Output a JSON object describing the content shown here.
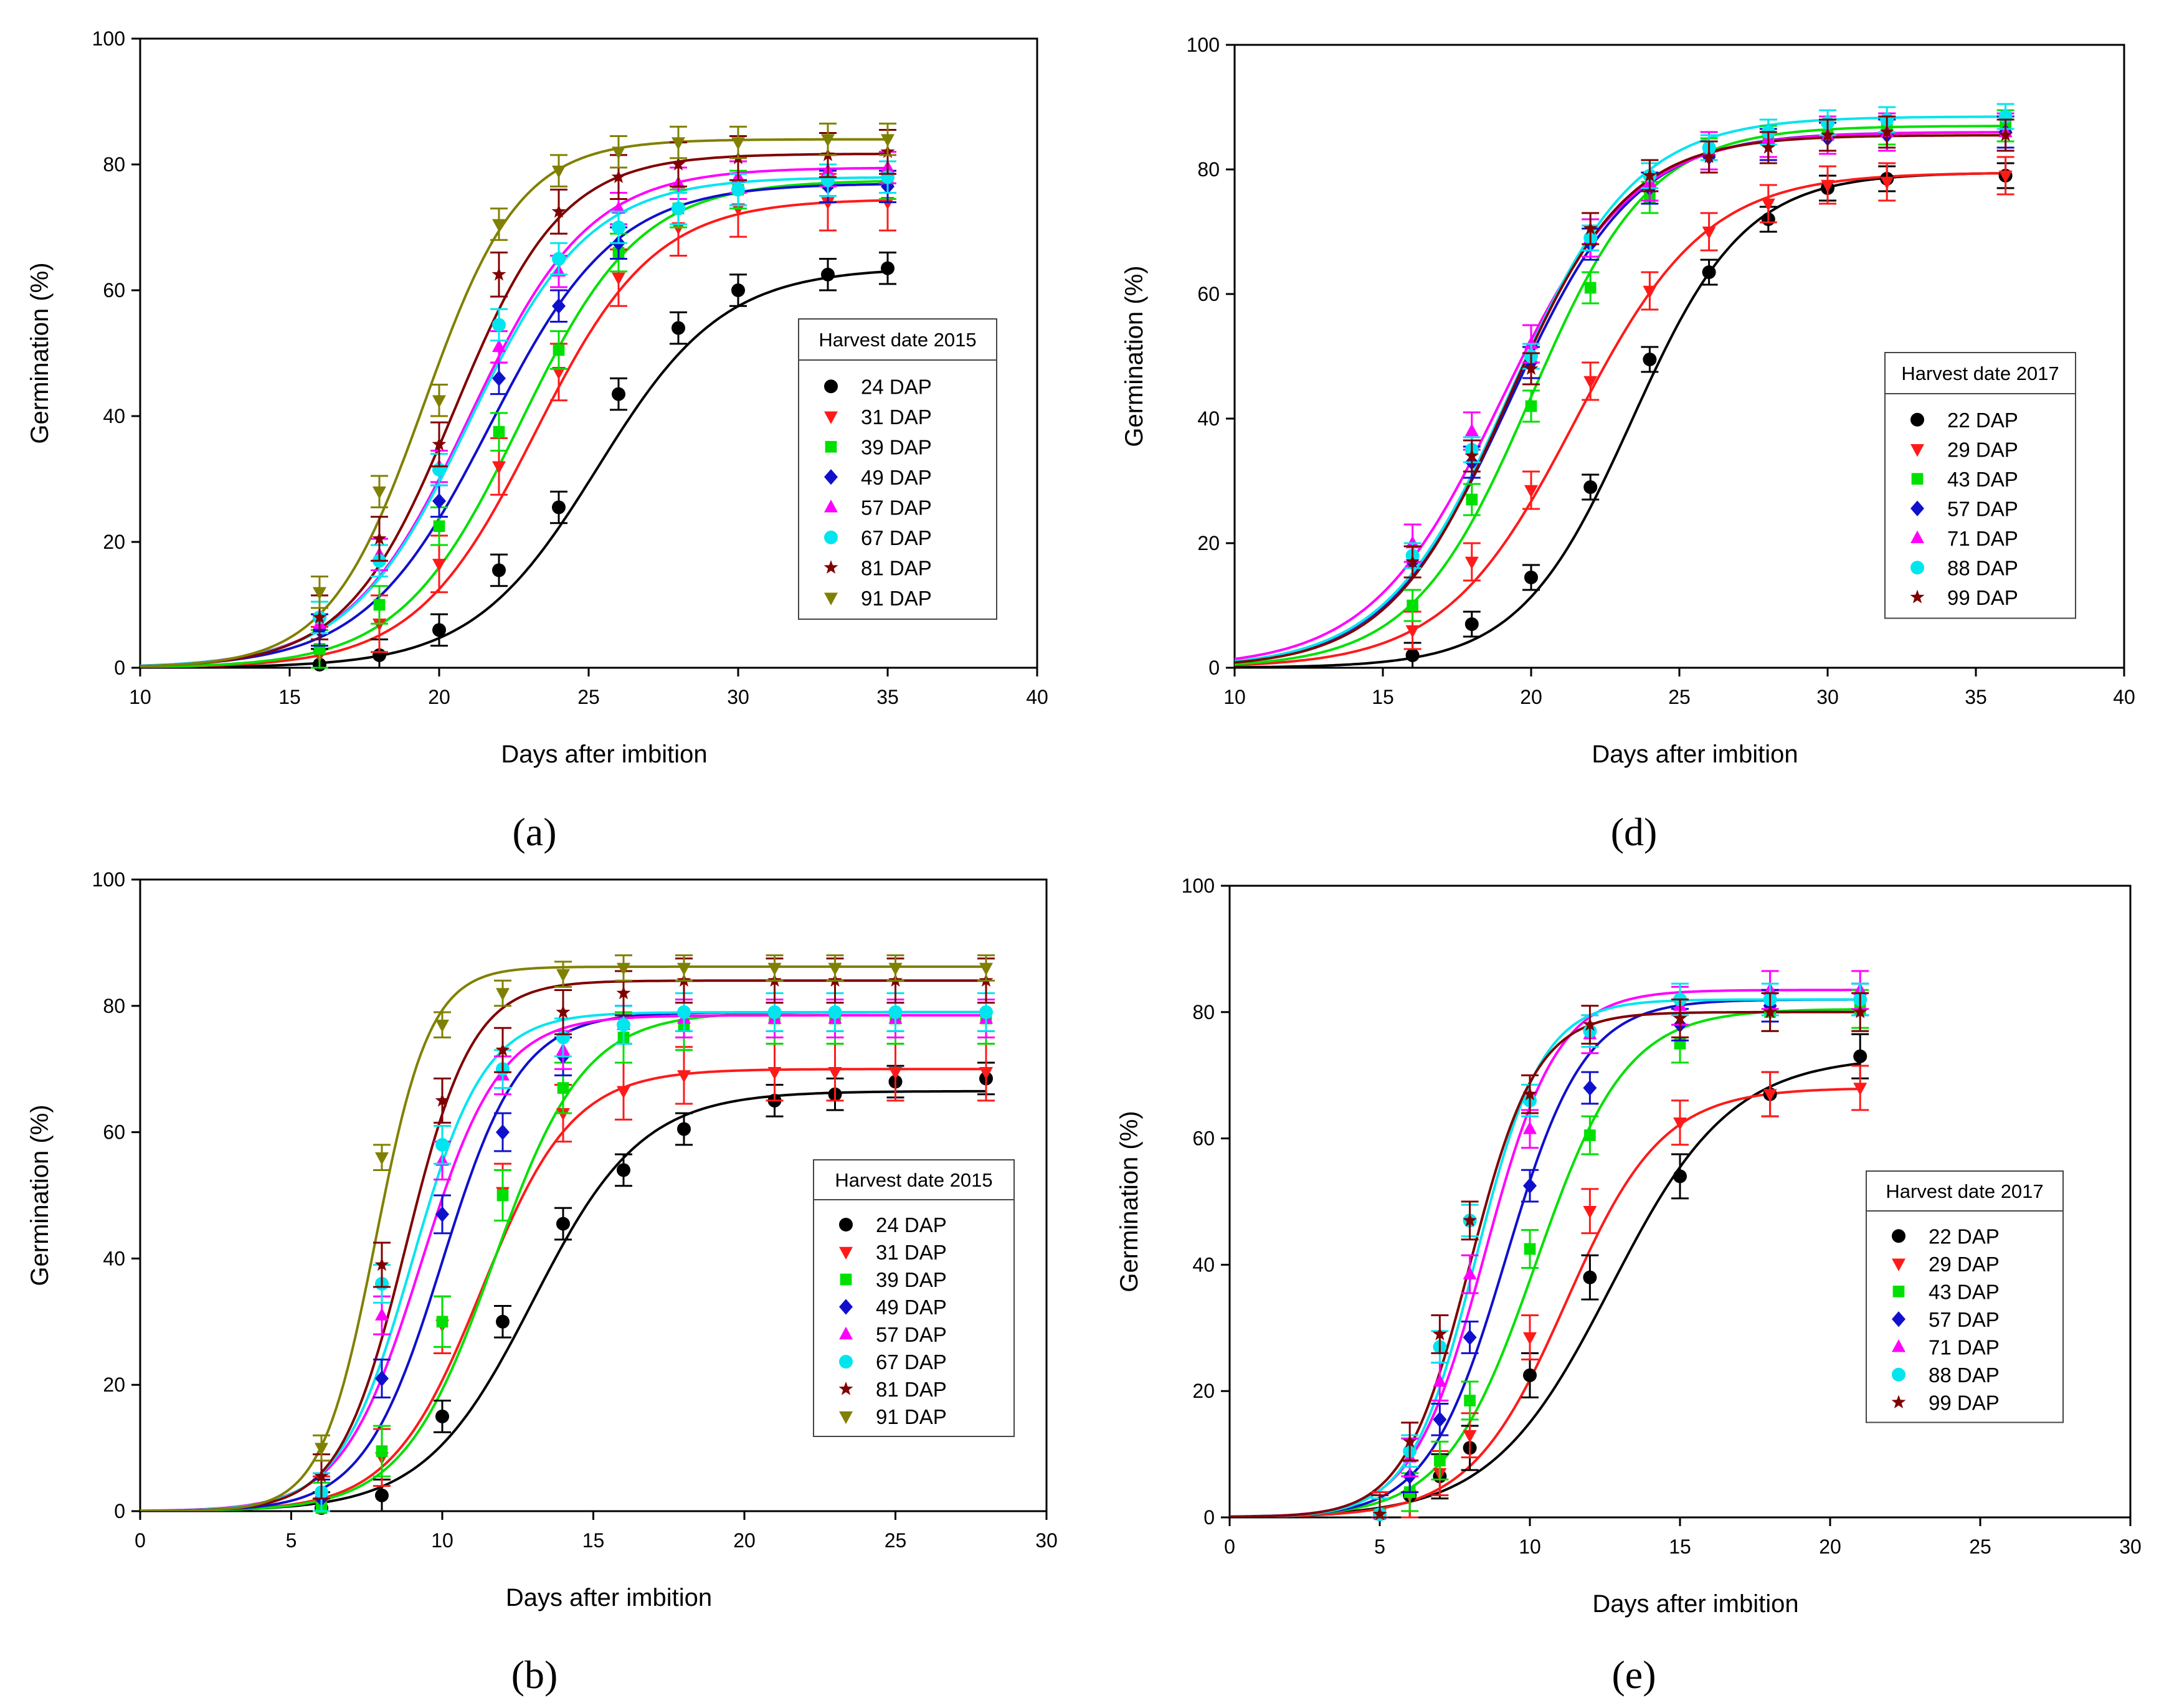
{
  "figure": {
    "panels": [
      {
        "id": "a",
        "label": "(a)"
      },
      {
        "id": "d",
        "label": "(d)"
      },
      {
        "id": "b",
        "label": "(b)"
      },
      {
        "id": "e",
        "label": "(e)"
      }
    ]
  },
  "colors": {
    "black": "#000000",
    "red": "#ff1a1a",
    "green": "#00e000",
    "blue": "#1010cc",
    "magenta": "#ff00ff",
    "cyan": "#00e5ee",
    "darkred": "#800000",
    "olive": "#808000"
  },
  "chart_data": [
    {
      "id": "a",
      "type": "line",
      "title": "",
      "xlabel": "Days after imbition",
      "ylabel": "Germination (%)",
      "xlim": [
        10,
        40
      ],
      "ylim": [
        0,
        100
      ],
      "xticks": [
        10,
        15,
        20,
        25,
        30,
        35,
        40
      ],
      "yticks": [
        0,
        20,
        40,
        60,
        80,
        100
      ],
      "legend_title": "Harvest date 2015",
      "legend_position": "center-right",
      "x": [
        16,
        18,
        20,
        22,
        24,
        26,
        28,
        30,
        33,
        35
      ],
      "series": [
        {
          "name": "24 DAP",
          "marker": "circle",
          "color": "#000000",
          "values": [
            0.5,
            2,
            6,
            15.5,
            25.5,
            43.5,
            54,
            60,
            62.5,
            63.5
          ],
          "err": 2.5,
          "fit": {
            "a": 63.6,
            "x0": 25.3,
            "b": 2.1
          }
        },
        {
          "name": "31 DAP",
          "marker": "triangle-down",
          "color": "#ff1a1a",
          "values": [
            2,
            7,
            16.5,
            32,
            47,
            62,
            70,
            73,
            74,
            74
          ],
          "err": 4.5,
          "fit": {
            "a": 74.5,
            "x0": 23.2,
            "b": 2.0
          }
        },
        {
          "name": "39 DAP",
          "marker": "square",
          "color": "#00e000",
          "values": [
            3,
            10,
            22.5,
            37.5,
            50.5,
            66,
            73,
            76,
            77,
            77.5
          ],
          "err": 3,
          "fit": {
            "a": 77.5,
            "x0": 22.7,
            "b": 2.0
          }
        },
        {
          "name": "49 DAP",
          "marker": "diamond",
          "color": "#1010cc",
          "values": [
            6,
            17,
            26.5,
            46,
            57.5,
            67.5,
            73,
            76,
            76.5,
            76.5
          ],
          "err": 2.5,
          "fit": {
            "a": 77.0,
            "x0": 21.7,
            "b": 2.1
          }
        },
        {
          "name": "57 DAP",
          "marker": "triangle-up",
          "color": "#ff00ff",
          "values": [
            7,
            18,
            32,
            51,
            63,
            73,
            77,
            78,
            79,
            79.5
          ],
          "err": 2.5,
          "fit": {
            "a": 79.5,
            "x0": 21.0,
            "b": 2.0
          }
        },
        {
          "name": "67 DAP",
          "marker": "circle",
          "color": "#00e5ee",
          "values": [
            8,
            17,
            31.5,
            54.5,
            65,
            70,
            73,
            76,
            77.5,
            78
          ],
          "err": 2.5,
          "fit": {
            "a": 78.0,
            "x0": 21.0,
            "b": 2.0
          }
        },
        {
          "name": "81 DAP",
          "marker": "star",
          "color": "#800000",
          "values": [
            8,
            20.5,
            35.5,
            62.5,
            72.5,
            78,
            80,
            81,
            81.5,
            82
          ],
          "err": 3.5,
          "fit": {
            "a": 81.7,
            "x0": 20.5,
            "b": 1.8
          }
        },
        {
          "name": "91 DAP",
          "marker": "triangle-down",
          "color": "#808000",
          "values": [
            12,
            28,
            42.5,
            70.5,
            79,
            82,
            83.5,
            83.5,
            84,
            84
          ],
          "err": 2.5,
          "fit": {
            "a": 84.0,
            "x0": 19.5,
            "b": 1.6
          }
        }
      ]
    },
    {
      "id": "d",
      "type": "line",
      "title": "",
      "xlabel": "Days after imbition",
      "ylabel": "Germination (%)",
      "xlim": [
        10,
        40
      ],
      "ylim": [
        0,
        100
      ],
      "xticks": [
        10,
        15,
        20,
        25,
        30,
        35,
        40
      ],
      "yticks": [
        0,
        20,
        40,
        60,
        80,
        100
      ],
      "legend_title": "Harvest date 2017",
      "legend_position": "center-right",
      "x": [
        16,
        18,
        20,
        22,
        24,
        26,
        28,
        30,
        32,
        36
      ],
      "series": [
        {
          "name": "22 DAP",
          "marker": "circle",
          "color": "#000000",
          "values": [
            2,
            7,
            14.5,
            29,
            49.5,
            63.5,
            72,
            77,
            78.5,
            79
          ],
          "err": 2,
          "fit": {
            "a": 79.5,
            "x0": 23.4,
            "b": 1.9
          }
        },
        {
          "name": "29 DAP",
          "marker": "triangle-down",
          "color": "#ff1a1a",
          "values": [
            6,
            17,
            28.5,
            46,
            60.5,
            70,
            74.5,
            77.5,
            78,
            79
          ],
          "err": 3,
          "fit": {
            "a": 79.5,
            "x0": 21.5,
            "b": 2.2
          }
        },
        {
          "name": "43 DAP",
          "marker": "square",
          "color": "#00e000",
          "values": [
            10,
            27,
            42,
            61,
            75.5,
            82.5,
            84.5,
            85.5,
            86.5,
            87
          ],
          "err": 2.5,
          "fit": {
            "a": 87.0,
            "x0": 20.0,
            "b": 2.0
          }
        },
        {
          "name": "57 DAP",
          "marker": "diamond",
          "color": "#1010cc",
          "values": [
            17,
            33,
            49,
            68,
            77,
            82,
            84,
            85,
            85.5,
            86
          ],
          "err": 2.5,
          "fit": {
            "a": 86.0,
            "x0": 19.3,
            "b": 2.1
          }
        },
        {
          "name": "71 DAP",
          "marker": "triangle-up",
          "color": "#ff00ff",
          "values": [
            20,
            38,
            52,
            69,
            78,
            83,
            85,
            85.5,
            86,
            86
          ],
          "err": 3,
          "fit": {
            "a": 86.0,
            "x0": 19.0,
            "b": 2.2
          }
        },
        {
          "name": "88 DAP",
          "marker": "circle",
          "color": "#00e5ee",
          "values": [
            18,
            35,
            50,
            69,
            79,
            83.5,
            86,
            87.5,
            88,
            88.5
          ],
          "err": 2,
          "fit": {
            "a": 88.5,
            "x0": 19.3,
            "b": 2.1
          }
        },
        {
          "name": "99 DAP",
          "marker": "star",
          "color": "#800000",
          "values": [
            17,
            34,
            48,
            70.5,
            79,
            82,
            83.5,
            85.5,
            86,
            85.5
          ],
          "err": 2.5,
          "fit": {
            "a": 85.5,
            "x0": 19.2,
            "b": 2.0
          }
        }
      ]
    },
    {
      "id": "b",
      "type": "line",
      "title": "",
      "xlabel": "Days after imbition",
      "ylabel": "Germination (%)",
      "xlim": [
        0,
        30
      ],
      "ylim": [
        0,
        100
      ],
      "xticks": [
        0,
        5,
        10,
        15,
        20,
        25,
        30
      ],
      "yticks": [
        0,
        20,
        40,
        60,
        80,
        100
      ],
      "legend_title": "Harvest date 2015",
      "legend_position": "center-right",
      "x": [
        6,
        8,
        10,
        12,
        14,
        16,
        18,
        21,
        23,
        25,
        28
      ],
      "series": [
        {
          "name": "24 DAP",
          "marker": "circle",
          "color": "#000000",
          "values": [
            0.5,
            2.5,
            15,
            30,
            45.5,
            54,
            60.5,
            65,
            66,
            68,
            68.5
          ],
          "err": 2.5,
          "fit": {
            "a": 66.5,
            "x0": 13.0,
            "b": 1.8
          }
        },
        {
          "name": "31 DAP",
          "marker": "triangle-down",
          "color": "#ff1a1a",
          "values": [
            1,
            8.5,
            29.5,
            50.5,
            63,
            66.5,
            69,
            69.5,
            69.5,
            69.5,
            69.5
          ],
          "err": 4.5,
          "fit": {
            "a": 70.0,
            "x0": 11.3,
            "b": 1.5
          }
        },
        {
          "name": "39 DAP",
          "marker": "square",
          "color": "#00e000",
          "values": [
            0.5,
            9.5,
            30,
            50,
            67,
            75,
            77,
            78,
            78,
            78,
            78
          ],
          "err": 4,
          "fit": {
            "a": 79.0,
            "x0": 11.7,
            "b": 1.5
          }
        },
        {
          "name": "49 DAP",
          "marker": "diamond",
          "color": "#1010cc",
          "values": [
            2,
            21,
            47,
            60,
            72,
            77,
            79,
            79,
            79,
            79,
            79
          ],
          "err": 3,
          "fit": {
            "a": 79.0,
            "x0": 10.0,
            "b": 1.3
          }
        },
        {
          "name": "57 DAP",
          "marker": "triangle-up",
          "color": "#ff00ff",
          "values": [
            3,
            31,
            55.5,
            69,
            73,
            77,
            78,
            78,
            78,
            78,
            78
          ],
          "err": 3,
          "fit": {
            "a": 78.5,
            "x0": 9.3,
            "b": 1.3
          }
        },
        {
          "name": "67 DAP",
          "marker": "circle",
          "color": "#00e5ee",
          "values": [
            3,
            36,
            58,
            70,
            75,
            77,
            79,
            79,
            79,
            79,
            79
          ],
          "err": 3,
          "fit": {
            "a": 79.0,
            "x0": 9.0,
            "b": 1.2
          }
        },
        {
          "name": "81 DAP",
          "marker": "star",
          "color": "#800000",
          "values": [
            5.5,
            39,
            65,
            73,
            79,
            82,
            84,
            84,
            84,
            84,
            84
          ],
          "err": 3.5,
          "fit": {
            "a": 84.0,
            "x0": 8.8,
            "b": 1.1
          }
        },
        {
          "name": "91 DAP",
          "marker": "triangle-down",
          "color": "#808000",
          "values": [
            10,
            56,
            77,
            82,
            85,
            86,
            86,
            86,
            86,
            86,
            86
          ],
          "err": 2,
          "fit": {
            "a": 86.2,
            "x0": 7.8,
            "b": 0.9
          }
        }
      ]
    },
    {
      "id": "e",
      "type": "line",
      "title": "",
      "xlabel": "Days after imbition",
      "ylabel": "Germination (%)",
      "xlim": [
        0,
        30
      ],
      "ylim": [
        0,
        100
      ],
      "xticks": [
        0,
        5,
        10,
        15,
        20,
        25,
        30
      ],
      "yticks": [
        0,
        20,
        40,
        60,
        80,
        100
      ],
      "legend_title": "Harvest date 2017",
      "legend_position": "center-right",
      "x": [
        5,
        6,
        7,
        8,
        10,
        12,
        15,
        18,
        21
      ],
      "series": [
        {
          "name": "22 DAP",
          "marker": "circle",
          "color": "#000000",
          "values": [
            0.5,
            3.5,
            6.5,
            11,
            22.5,
            38,
            54,
            67,
            73
          ],
          "err": 3.5,
          "fit": {
            "a": 73.0,
            "x0": 12.7,
            "b": 2.0
          }
        },
        {
          "name": "29 DAP",
          "marker": "triangle-down",
          "color": "#ff1a1a",
          "values": [
            0.5,
            3.5,
            7,
            13,
            28.5,
            48.5,
            62.5,
            67,
            68
          ],
          "err": 3.5,
          "fit": {
            "a": 68.0,
            "x0": 11.2,
            "b": 1.6
          }
        },
        {
          "name": "43 DAP",
          "marker": "square",
          "color": "#00e000",
          "values": [
            0.5,
            4,
            9,
            18.5,
            42.5,
            60.5,
            75,
            80,
            80.5
          ],
          "err": 3,
          "fit": {
            "a": 80.5,
            "x0": 10.2,
            "b": 1.5
          }
        },
        {
          "name": "57 DAP",
          "marker": "diamond",
          "color": "#1010cc",
          "values": [
            0.5,
            6.5,
            15.5,
            28.5,
            52.5,
            68,
            78,
            81,
            82
          ],
          "err": 2.5,
          "fit": {
            "a": 82.0,
            "x0": 9.2,
            "b": 1.3
          }
        },
        {
          "name": "71 DAP",
          "marker": "triangle-up",
          "color": "#ff00ff",
          "values": [
            0.5,
            9.5,
            21.5,
            38.5,
            61.5,
            76.5,
            81,
            83.5,
            83.5
          ],
          "err": 3,
          "fit": {
            "a": 83.5,
            "x0": 8.5,
            "b": 1.2
          }
        },
        {
          "name": "88 DAP",
          "marker": "circle",
          "color": "#00e5ee",
          "values": [
            0.5,
            10.5,
            27,
            47,
            66,
            77,
            82,
            82,
            82
          ],
          "err": 2.5,
          "fit": {
            "a": 82.0,
            "x0": 8.2,
            "b": 1.1
          }
        },
        {
          "name": "99 DAP",
          "marker": "star",
          "color": "#800000",
          "values": [
            0.5,
            12,
            29,
            47,
            67,
            78,
            79,
            80,
            80
          ],
          "err": 3,
          "fit": {
            "a": 80.0,
            "x0": 8.0,
            "b": 1.1
          }
        }
      ]
    }
  ]
}
